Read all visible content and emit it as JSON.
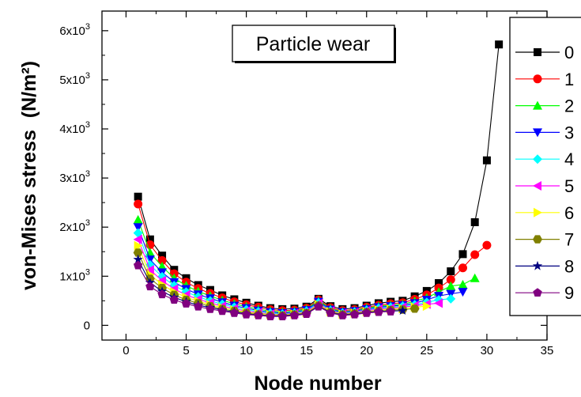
{
  "chart_data": {
    "type": "line",
    "title": "Particle wear",
    "xlabel": "Node number",
    "ylabel": "von-Mises stress",
    "ylabel_unit": "(N/m²)",
    "xlim": [
      -2,
      35
    ],
    "ylim": [
      -300,
      6400
    ],
    "x_ticks": [
      0,
      5,
      10,
      15,
      20,
      25,
      30,
      35
    ],
    "y_ticks": [
      {
        "value": 0,
        "mant": "0",
        "exp": ""
      },
      {
        "value": 1000,
        "mant": "1x10",
        "exp": "3"
      },
      {
        "value": 2000,
        "mant": "2x10",
        "exp": "3"
      },
      {
        "value": 3000,
        "mant": "3x10",
        "exp": "3"
      },
      {
        "value": 4000,
        "mant": "4x10",
        "exp": "3"
      },
      {
        "value": 5000,
        "mant": "5x10",
        "exp": "3"
      },
      {
        "value": 6000,
        "mant": "6x10",
        "exp": "3"
      }
    ],
    "grid": false,
    "legend_position": "right (clipped at edge)",
    "series": [
      {
        "name": "0",
        "color": "#000000",
        "marker": "square",
        "x": [
          1,
          2,
          3,
          4,
          5,
          6,
          7,
          8,
          9,
          10,
          11,
          12,
          13,
          14,
          15,
          16,
          17,
          18,
          19,
          20,
          21,
          22,
          23,
          24,
          25,
          26,
          27,
          28,
          29,
          30,
          31
        ],
        "y": [
          2620,
          1750,
          1420,
          1130,
          960,
          820,
          720,
          610,
          530,
          460,
          400,
          350,
          330,
          340,
          380,
          540,
          390,
          330,
          350,
          400,
          450,
          480,
          500,
          590,
          700,
          860,
          1100,
          1450,
          2100,
          3360,
          5720
        ]
      },
      {
        "name": "1",
        "color": "#ff0000",
        "marker": "circle",
        "x": [
          1,
          2,
          3,
          4,
          5,
          6,
          7,
          8,
          9,
          10,
          11,
          12,
          13,
          14,
          15,
          16,
          17,
          18,
          19,
          20,
          21,
          22,
          23,
          24,
          25,
          26,
          27,
          28,
          29,
          30
        ],
        "y": [
          2470,
          1640,
          1320,
          1050,
          880,
          750,
          650,
          560,
          480,
          420,
          370,
          320,
          300,
          310,
          350,
          520,
          360,
          300,
          320,
          370,
          410,
          440,
          460,
          530,
          620,
          760,
          930,
          1170,
          1440,
          1630
        ]
      },
      {
        "name": "2",
        "color": "#00ff00",
        "marker": "triangle-up",
        "x": [
          1,
          2,
          3,
          4,
          5,
          6,
          7,
          8,
          9,
          10,
          11,
          12,
          13,
          14,
          15,
          16,
          17,
          18,
          19,
          20,
          21,
          22,
          23,
          24,
          25,
          26,
          27,
          28,
          29
        ],
        "y": [
          2150,
          1480,
          1200,
          960,
          810,
          690,
          600,
          510,
          440,
          380,
          330,
          290,
          270,
          290,
          330,
          500,
          340,
          280,
          300,
          350,
          390,
          410,
          430,
          490,
          560,
          680,
          800,
          830,
          960
        ]
      },
      {
        "name": "3",
        "color": "#0000ff",
        "marker": "triangle-down",
        "x": [
          1,
          2,
          3,
          4,
          5,
          6,
          7,
          8,
          9,
          10,
          11,
          12,
          13,
          14,
          15,
          16,
          17,
          18,
          19,
          20,
          21,
          22,
          23,
          24,
          25,
          26,
          27,
          28
        ],
        "y": [
          2000,
          1340,
          1080,
          880,
          740,
          630,
          550,
          470,
          400,
          350,
          300,
          270,
          250,
          270,
          310,
          480,
          320,
          270,
          290,
          330,
          370,
          390,
          410,
          450,
          520,
          600,
          640,
          680
        ]
      },
      {
        "name": "4",
        "color": "#00ffff",
        "marker": "diamond",
        "x": [
          1,
          2,
          3,
          4,
          5,
          6,
          7,
          8,
          9,
          10,
          11,
          12,
          13,
          14,
          15,
          16,
          17,
          18,
          19,
          20,
          21,
          22,
          23,
          24,
          25,
          26,
          27
        ],
        "y": [
          1880,
          1230,
          990,
          810,
          680,
          580,
          500,
          430,
          370,
          320,
          280,
          250,
          230,
          250,
          290,
          460,
          300,
          250,
          270,
          310,
          350,
          370,
          390,
          420,
          470,
          520,
          540
        ]
      },
      {
        "name": "5",
        "color": "#ff00ff",
        "marker": "triangle-left",
        "x": [
          1,
          2,
          3,
          4,
          5,
          6,
          7,
          8,
          9,
          10,
          11,
          12,
          13,
          14,
          15,
          16,
          17,
          18,
          19,
          20,
          21,
          22,
          23,
          24,
          25,
          26
        ],
        "y": [
          1750,
          1130,
          910,
          740,
          620,
          530,
          460,
          390,
          340,
          290,
          260,
          230,
          220,
          240,
          270,
          440,
          290,
          240,
          260,
          300,
          330,
          350,
          370,
          400,
          430,
          450
        ]
      },
      {
        "name": "6",
        "color": "#ffff00",
        "marker": "triangle-right",
        "x": [
          1,
          2,
          3,
          4,
          5,
          6,
          7,
          8,
          9,
          10,
          11,
          12,
          13,
          14,
          15,
          16,
          17,
          18,
          19,
          20,
          21,
          22,
          23,
          24,
          25
        ],
        "y": [
          1620,
          1030,
          830,
          680,
          570,
          490,
          420,
          360,
          310,
          270,
          240,
          220,
          210,
          230,
          260,
          420,
          280,
          230,
          250,
          280,
          310,
          330,
          340,
          370,
          390
        ]
      },
      {
        "name": "7",
        "color": "#808000",
        "marker": "hexagon",
        "x": [
          1,
          2,
          3,
          4,
          5,
          6,
          7,
          8,
          9,
          10,
          11,
          12,
          13,
          14,
          15,
          16,
          17,
          18,
          19,
          20,
          21,
          22,
          23,
          24
        ],
        "y": [
          1480,
          950,
          760,
          620,
          520,
          450,
          390,
          330,
          290,
          250,
          220,
          200,
          200,
          220,
          250,
          400,
          270,
          220,
          240,
          270,
          290,
          310,
          320,
          340
        ]
      },
      {
        "name": "8",
        "color": "#000080",
        "marker": "star",
        "x": [
          1,
          2,
          3,
          4,
          5,
          6,
          7,
          8,
          9,
          10,
          11,
          12,
          13,
          14,
          15,
          16,
          17,
          18,
          19,
          20,
          21,
          22,
          23
        ],
        "y": [
          1340,
          870,
          690,
          570,
          480,
          410,
          360,
          310,
          270,
          230,
          210,
          190,
          190,
          210,
          240,
          390,
          260,
          210,
          230,
          260,
          280,
          290,
          300
        ]
      },
      {
        "name": "9",
        "color": "#800080",
        "marker": "pentagon",
        "x": [
          1,
          2,
          3,
          4,
          5,
          6,
          7,
          8,
          9,
          10,
          11,
          12,
          13,
          14,
          15,
          16,
          17,
          18,
          19,
          20,
          21,
          22
        ],
        "y": [
          1220,
          790,
          630,
          520,
          440,
          380,
          330,
          290,
          250,
          220,
          200,
          180,
          180,
          200,
          230,
          380,
          250,
          200,
          220,
          250,
          270,
          280
        ]
      }
    ]
  }
}
